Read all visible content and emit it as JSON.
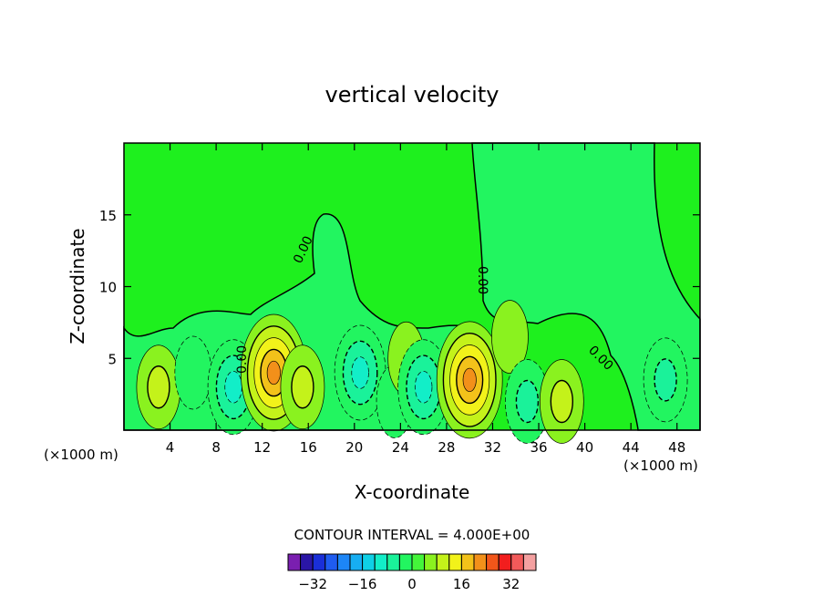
{
  "chart_data": {
    "type": "heatmap",
    "title": "vertical velocity",
    "xlabel": "X-coordinate",
    "ylabel": "Z-coordinate",
    "x_unit_left": "(×1000 m)",
    "x_unit_right": "(×1000 m)",
    "xlim": [
      0,
      50
    ],
    "ylim": [
      0,
      20
    ],
    "x_ticks": [
      "4",
      "8",
      "12",
      "16",
      "20",
      "24",
      "28",
      "32",
      "36",
      "40",
      "44",
      "48"
    ],
    "y_ticks": [
      "5",
      "10",
      "15"
    ],
    "contour_interval_label": "CONTOUR INTERVAL = 4.000E+00",
    "contour_zero_label": "0.00",
    "contour_interval": 4,
    "colorbar": {
      "tick_labels": [
        "−32",
        "−16",
        "0",
        "16",
        "32"
      ],
      "tick_values": [
        -32,
        -16,
        0,
        16,
        32
      ],
      "levels": [
        -36,
        -32,
        -28,
        -24,
        -20,
        -16,
        -12,
        -8,
        -4,
        0,
        4,
        8,
        12,
        16,
        20,
        24,
        28,
        32,
        36
      ],
      "colors": [
        "#7a1fb0",
        "#2a16a6",
        "#1a2fd8",
        "#1f5cf0",
        "#1d86f7",
        "#17aef2",
        "#0fd0e6",
        "#12eec8",
        "#1af29a",
        "#22f560",
        "#44f53a",
        "#8af21f",
        "#c4f21a",
        "#f2f21a",
        "#f2c21a",
        "#f2901a",
        "#f2561a",
        "#f21e1e",
        "#f25a5a",
        "#f4a0a0"
      ]
    },
    "features": [
      {
        "x": 3,
        "z": 3,
        "w": 9
      },
      {
        "x": 6,
        "z": 4,
        "w": -6
      },
      {
        "x": 9.5,
        "z": 3,
        "w": -14
      },
      {
        "x": 13,
        "z": 4,
        "w": 21
      },
      {
        "x": 15.5,
        "z": 3,
        "w": 10
      },
      {
        "x": 20.5,
        "z": 4,
        "w": -14
      },
      {
        "x": 23.5,
        "z": 2,
        "w": -6
      },
      {
        "x": 24.5,
        "z": 5,
        "w": 5
      },
      {
        "x": 26,
        "z": 3,
        "w": -13
      },
      {
        "x": 30,
        "z": 3.5,
        "w": 21
      },
      {
        "x": 33.5,
        "z": 6.5,
        "w": 3
      },
      {
        "x": 35,
        "z": 2,
        "w": -10
      },
      {
        "x": 38,
        "z": 2,
        "w": 10
      },
      {
        "x": 47,
        "z": 3.5,
        "w": -10
      }
    ]
  }
}
